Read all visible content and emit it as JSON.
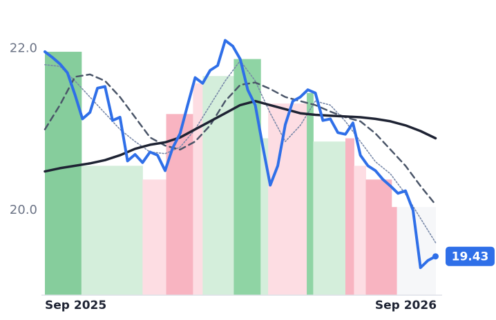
{
  "chart_data": {
    "type": "line",
    "xlim": [
      0,
      368
    ],
    "ylim": [
      18.95,
      22.6
    ],
    "yticks": [
      {
        "value": 20,
        "label": "20.0"
      },
      {
        "value": 22,
        "label": "22.0"
      }
    ],
    "xticks": [
      {
        "value": 0,
        "label": "Sep 2025"
      },
      {
        "value": 365,
        "label": "Sep 2026"
      }
    ],
    "bands": {
      "edges": [
        0,
        34,
        91,
        113,
        138,
        147,
        176,
        201,
        208,
        244,
        250,
        280,
        288,
        299,
        323,
        328,
        364
      ],
      "values": [
        21.96,
        20.55,
        20.38,
        21.19,
        21.57,
        21.66,
        21.87,
        20.89,
        21.32,
        21.45,
        20.85,
        20.89,
        20.55,
        20.38,
        20.04,
        20.04
      ],
      "colors": [
        "#86cd9c",
        "#d4eedb",
        "#fddde3",
        "#f8b4c1",
        "#fddde3",
        "#d4eedb",
        "#8fd4a4",
        "#d4eedb",
        "#fddde3",
        "#8fd4a4",
        "#d4eedb",
        "#f8b4c1",
        "#fddde3",
        "#f8b4c1",
        "#f8b4c1",
        "#f6f7f9"
      ]
    },
    "series": [
      {
        "color": "#2f6fe8",
        "style": "solid",
        "x": [
          0,
          7,
          14,
          21,
          28,
          35,
          42,
          49,
          56,
          63,
          70,
          77,
          84,
          91,
          98,
          105,
          112,
          119,
          126,
          133,
          140,
          147,
          154,
          161,
          168,
          175,
          182,
          189,
          196,
          203,
          210,
          217,
          224,
          231,
          238,
          245,
          252,
          259,
          266,
          273,
          280,
          287,
          294,
          301,
          308,
          315,
          322,
          329,
          336,
          343,
          350,
          357,
          364
        ],
        "values": [
          21.96,
          21.89,
          21.81,
          21.7,
          21.43,
          21.13,
          21.21,
          21.51,
          21.53,
          21.11,
          21.15,
          20.61,
          20.69,
          20.59,
          20.72,
          20.68,
          20.49,
          20.77,
          20.95,
          21.3,
          21.64,
          21.57,
          21.73,
          21.79,
          22.1,
          22.03,
          21.87,
          21.49,
          21.3,
          20.79,
          20.31,
          20.55,
          21.06,
          21.35,
          21.4,
          21.49,
          21.45,
          21.11,
          21.13,
          20.96,
          20.94,
          21.08,
          20.68,
          20.55,
          20.49,
          20.38,
          20.3,
          20.21,
          20.24,
          20.0,
          19.29,
          19.38,
          19.43
        ]
      },
      {
        "color": "#1e2333",
        "style": "thick",
        "x": [
          0,
          14,
          28,
          42,
          56,
          70,
          84,
          98,
          112,
          126,
          140,
          154,
          168,
          182,
          196,
          210,
          224,
          238,
          252,
          266,
          280,
          294,
          308,
          322,
          336,
          350,
          364
        ],
        "values": [
          20.48,
          20.52,
          20.55,
          20.58,
          20.62,
          20.68,
          20.76,
          20.81,
          20.84,
          20.9,
          21.0,
          21.1,
          21.2,
          21.3,
          21.35,
          21.3,
          21.25,
          21.2,
          21.18,
          21.17,
          21.16,
          21.15,
          21.13,
          21.1,
          21.05,
          20.98,
          20.89
        ]
      },
      {
        "color": "#4a5568",
        "style": "dashed",
        "x": [
          0,
          14,
          28,
          42,
          56,
          70,
          84,
          98,
          112,
          126,
          140,
          154,
          168,
          182,
          196,
          210,
          224,
          238,
          252,
          266,
          280,
          294,
          308,
          322,
          336,
          350,
          364
        ],
        "values": [
          21.0,
          21.3,
          21.65,
          21.68,
          21.6,
          21.4,
          21.15,
          20.9,
          20.8,
          20.75,
          20.85,
          21.05,
          21.35,
          21.55,
          21.58,
          21.5,
          21.4,
          21.35,
          21.3,
          21.22,
          21.15,
          21.1,
          20.95,
          20.75,
          20.55,
          20.3,
          20.07
        ]
      },
      {
        "color": "#7888a8",
        "style": "dotted",
        "x": [
          0,
          14,
          28,
          42,
          56,
          70,
          84,
          98,
          112,
          126,
          140,
          154,
          168,
          182,
          196,
          210,
          224,
          238,
          252,
          266,
          280,
          294,
          308,
          322,
          336,
          350,
          364
        ],
        "values": [
          21.8,
          21.78,
          21.6,
          21.4,
          21.2,
          21.0,
          20.85,
          20.72,
          20.7,
          20.78,
          21.0,
          21.3,
          21.6,
          21.85,
          21.6,
          21.2,
          20.85,
          21.05,
          21.35,
          21.3,
          21.1,
          20.85,
          20.6,
          20.45,
          20.2,
          19.9,
          19.6
        ]
      }
    ]
  }
}
